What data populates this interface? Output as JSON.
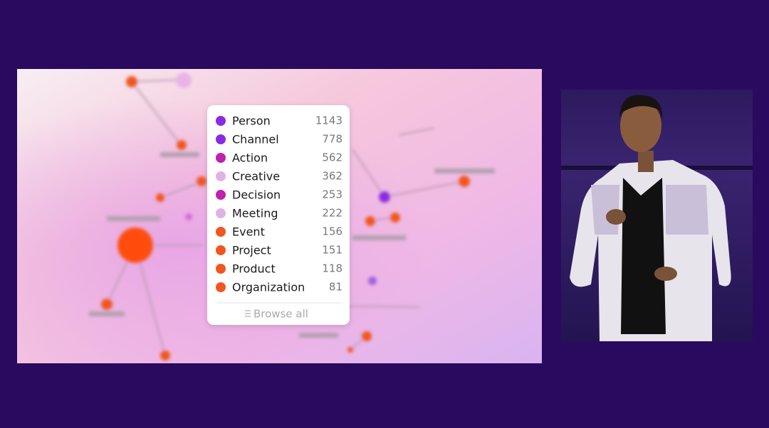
{
  "legend": {
    "items": [
      {
        "label": "Person",
        "count": "1143",
        "color": "#8a2be2"
      },
      {
        "label": "Channel",
        "count": "778",
        "color": "#8a2be2"
      },
      {
        "label": "Action",
        "count": "562",
        "color": "#c020b0"
      },
      {
        "label": "Creative",
        "count": "362",
        "color": "#dfb2e6"
      },
      {
        "label": "Decision",
        "count": "253",
        "color": "#c020b0"
      },
      {
        "label": "Meeting",
        "count": "222",
        "color": "#dfb2e6"
      },
      {
        "label": "Event",
        "count": "156",
        "color": "#f0561e"
      },
      {
        "label": "Project",
        "count": "151",
        "color": "#f0561e"
      },
      {
        "label": "Product",
        "count": "118",
        "color": "#f0561e"
      },
      {
        "label": "Organization",
        "count": "81",
        "color": "#f0561e"
      }
    ],
    "browse": "Browse all"
  }
}
